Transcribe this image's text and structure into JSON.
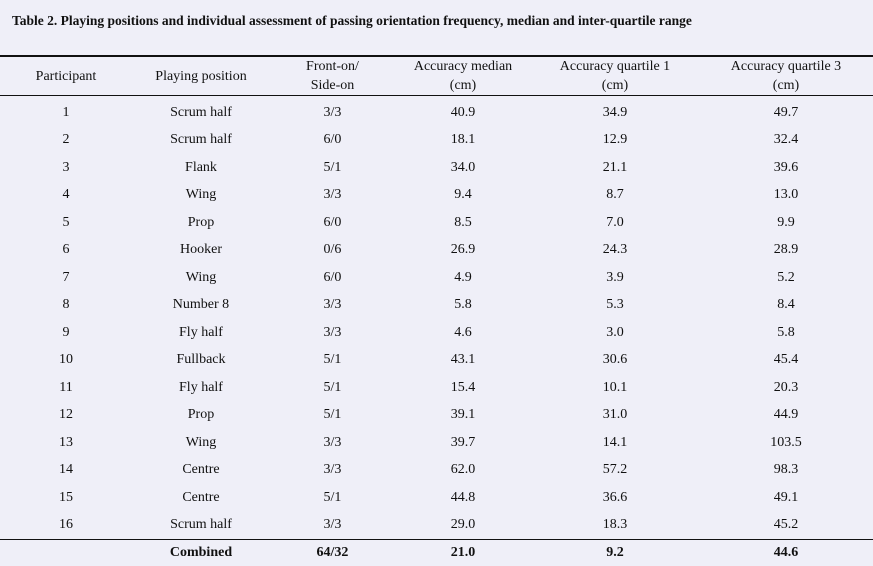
{
  "caption": "Table 2. Playing positions and individual assessment of passing orientation frequency, median and inter-quartile range",
  "columns": [
    {
      "line1": "Participant",
      "line2": ""
    },
    {
      "line1": "Playing position",
      "line2": ""
    },
    {
      "line1": "Front-on/",
      "line2": "Side-on"
    },
    {
      "line1": "Accuracy median",
      "line2": "(cm)"
    },
    {
      "line1": "Accuracy quartile 1",
      "line2": "(cm)"
    },
    {
      "line1": "Accuracy quartile 3",
      "line2": "(cm)"
    }
  ],
  "rows": [
    [
      "1",
      "Scrum half",
      "3/3",
      "40.9",
      "34.9",
      "49.7"
    ],
    [
      "2",
      "Scrum half",
      "6/0",
      "18.1",
      "12.9",
      "32.4"
    ],
    [
      "3",
      "Flank",
      "5/1",
      "34.0",
      "21.1",
      "39.6"
    ],
    [
      "4",
      "Wing",
      "3/3",
      "9.4",
      "8.7",
      "13.0"
    ],
    [
      "5",
      "Prop",
      "6/0",
      "8.5",
      "7.0",
      "9.9"
    ],
    [
      "6",
      "Hooker",
      "0/6",
      "26.9",
      "24.3",
      "28.9"
    ],
    [
      "7",
      "Wing",
      "6/0",
      "4.9",
      "3.9",
      "5.2"
    ],
    [
      "8",
      "Number 8",
      "3/3",
      "5.8",
      "5.3",
      "8.4"
    ],
    [
      "9",
      "Fly half",
      "3/3",
      "4.6",
      "3.0",
      "5.8"
    ],
    [
      "10",
      "Fullback",
      "5/1",
      "43.1",
      "30.6",
      "45.4"
    ],
    [
      "11",
      "Fly half",
      "5/1",
      "15.4",
      "10.1",
      "20.3"
    ],
    [
      "12",
      "Prop",
      "5/1",
      "39.1",
      "31.0",
      "44.9"
    ],
    [
      "13",
      "Wing",
      "3/3",
      "39.7",
      "14.1",
      "103.5"
    ],
    [
      "14",
      "Centre",
      "3/3",
      "62.0",
      "57.2",
      "98.3"
    ],
    [
      "15",
      "Centre",
      "5/1",
      "44.8",
      "36.6",
      "49.1"
    ],
    [
      "16",
      "Scrum half",
      "3/3",
      "29.0",
      "18.3",
      "45.2"
    ]
  ],
  "combined": [
    "",
    "Combined",
    "64/32",
    "21.0",
    "9.2",
    "44.6"
  ]
}
